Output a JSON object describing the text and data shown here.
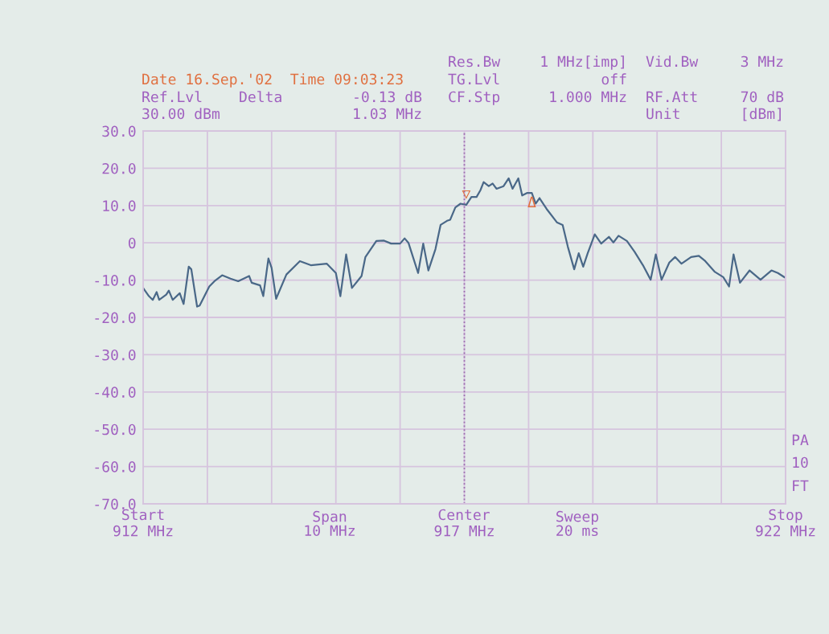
{
  "chart_data": {
    "type": "line",
    "x": [
      912.0,
      912.09,
      912.15,
      912.21,
      912.25,
      912.36,
      912.4,
      912.46,
      912.57,
      912.63,
      912.71,
      912.75,
      912.84,
      912.88,
      913.03,
      913.11,
      913.23,
      913.36,
      913.48,
      913.65,
      913.69,
      913.82,
      913.87,
      913.95,
      914.0,
      914.07,
      914.23,
      914.44,
      914.61,
      914.86,
      915.0,
      915.07,
      915.16,
      915.25,
      915.4,
      915.46,
      915.63,
      915.75,
      915.86,
      916.0,
      916.07,
      916.13,
      916.28,
      916.36,
      916.44,
      916.55,
      916.63,
      916.73,
      916.78,
      916.86,
      916.94,
      917.03,
      917.11,
      917.19,
      917.25,
      917.3,
      917.38,
      917.44,
      917.5,
      917.61,
      917.69,
      917.75,
      917.84,
      917.9,
      917.98,
      918.05,
      918.11,
      918.17,
      918.28,
      918.44,
      918.53,
      918.61,
      918.71,
      918.78,
      918.85,
      918.92,
      919.03,
      919.13,
      919.25,
      919.32,
      919.4,
      919.53,
      919.65,
      919.78,
      919.9,
      919.98,
      920.07,
      920.19,
      920.28,
      920.38,
      920.53,
      920.65,
      920.75,
      920.9,
      921.03,
      921.12,
      921.19,
      921.29,
      921.44,
      921.61,
      921.78,
      921.88,
      921.98
    ],
    "series": [
      {
        "color": "#4a6888",
        "values": [
          -12.1,
          -14.3,
          -15.3,
          -13.2,
          -15.3,
          -13.9,
          -12.8,
          -15.3,
          -13.5,
          -16.4,
          -6.4,
          -7.1,
          -17.1,
          -16.8,
          -11.7,
          -10.3,
          -8.7,
          -9.6,
          -10.3,
          -8.9,
          -10.7,
          -11.4,
          -14.3,
          -4.2,
          -6.7,
          -15.0,
          -8.5,
          -4.9,
          -6.0,
          -5.6,
          -8.1,
          -14.3,
          -3.1,
          -12.1,
          -8.9,
          -3.8,
          0.5,
          0.6,
          -0.2,
          -0.2,
          1.2,
          0.0,
          -8.1,
          -0.2,
          -7.4,
          -1.7,
          4.8,
          5.9,
          6.2,
          9.5,
          10.5,
          10.2,
          12.3,
          12.3,
          14.1,
          16.3,
          15.2,
          15.9,
          14.5,
          15.2,
          17.3,
          14.5,
          17.3,
          12.7,
          13.4,
          13.4,
          10.5,
          12.0,
          9.1,
          5.5,
          4.8,
          -1.0,
          -7.1,
          -2.8,
          -6.4,
          -2.8,
          2.3,
          -0.2,
          1.6,
          0.1,
          1.9,
          0.5,
          -2.4,
          -6.0,
          -9.9,
          -3.1,
          -9.9,
          -5.3,
          -3.8,
          -5.6,
          -3.8,
          -3.5,
          -4.9,
          -7.8,
          -9.2,
          -11.7,
          -3.1,
          -10.7,
          -7.4,
          -9.9,
          -7.4,
          -8.1,
          -9.2
        ]
      }
    ],
    "xlim": [
      912,
      922
    ],
    "xticks": [
      {
        "value": 912,
        "label": "912 MHz"
      },
      {
        "value": 913,
        "label": null
      },
      {
        "value": 914,
        "label": null
      },
      {
        "value": 915,
        "label": null
      },
      {
        "value": 916,
        "label": null
      },
      {
        "value": 917,
        "label": "917 MHz"
      },
      {
        "value": 918,
        "label": null
      },
      {
        "value": 919,
        "label": null
      },
      {
        "value": 920,
        "label": null
      },
      {
        "value": 921,
        "label": null
      },
      {
        "value": 922,
        "label": "922 MHz"
      }
    ],
    "ylim": [
      -70,
      30
    ],
    "yticks": [
      {
        "value": 30,
        "label": "30.0"
      },
      {
        "value": 20,
        "label": "20.0"
      },
      {
        "value": 10,
        "label": "10.0"
      },
      {
        "value": 0,
        "label": "0"
      },
      {
        "value": -10,
        "label": "-10.0"
      },
      {
        "value": -20,
        "label": "-20.0"
      },
      {
        "value": -30,
        "label": "-30.0"
      },
      {
        "value": -40,
        "label": "-40.0"
      },
      {
        "value": -50,
        "label": "-50.0"
      },
      {
        "value": -60,
        "label": "-60.0"
      },
      {
        "value": -70,
        "label": "-70.0"
      }
    ],
    "grid": true,
    "legend": false,
    "marker": "none",
    "line_style": "solid",
    "ref_lines": [
      {
        "axis": "x",
        "value": 917,
        "line_style": "dotted",
        "color": "#9a6aae"
      }
    ],
    "annotations": [
      "Res.Bw",
      "1 MHz[imp]",
      "Vid.Bw",
      "3 MHz",
      "Date 16.Sep.'02  Time 09:03:23",
      "TG.Lvl",
      "off",
      "Ref.Lvl",
      "Delta",
      "-0.13 dB",
      "CF.Stp",
      "1.000 MHz",
      "RF.Att",
      "70 dB",
      "30.00 dBm",
      "1.03 MHz",
      "Unit",
      "[dBm]",
      "Start",
      "Span\n10 MHz",
      "Center",
      "Sweep\n20 ms",
      "Stop",
      "PA",
      "10",
      "FT",
      {
        "text": "▽",
        "x": 917.03,
        "y": 10.2
      },
      {
        "text": "Δ",
        "x": 918.05,
        "y": 13.4
      }
    ]
  }
}
